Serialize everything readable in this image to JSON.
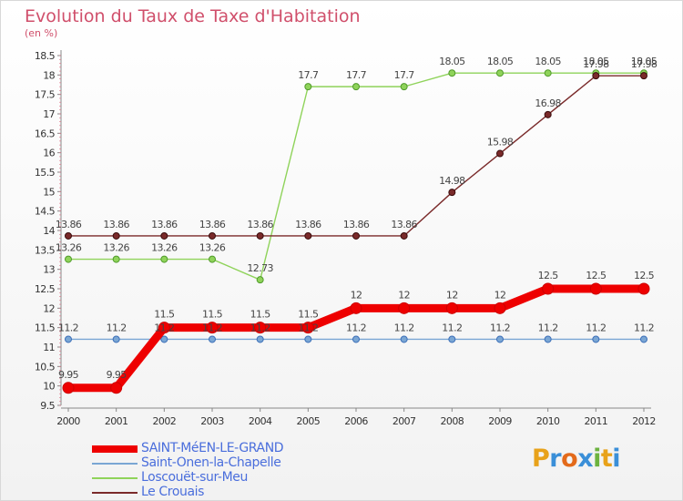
{
  "chart": {
    "title": "Evolution du Taux de Taxe d'Habitation",
    "unit": "(en %)"
  },
  "logo": {
    "text": "Proxiti",
    "letter_colors": [
      "#e8a21a",
      "#3a8fd8",
      "#e36a1b",
      "#3a8fd8",
      "#6cb33f",
      "#e8a21a",
      "#3a8fd8"
    ]
  },
  "chart_data": {
    "type": "line",
    "title": "Evolution du Taux de Taxe d'Habitation",
    "ylabel": "(en %)",
    "xlabel": "",
    "x": [
      "2000",
      "2001",
      "2002",
      "2003",
      "2004",
      "2005",
      "2006",
      "2007",
      "2008",
      "2009",
      "2010",
      "2011",
      "2012"
    ],
    "ylim": [
      9.5,
      18.5
    ],
    "yticks": [
      "9.5",
      "10",
      "10.5",
      "11",
      "11.5",
      "12",
      "12.5",
      "13",
      "13.5",
      "14",
      "14.5",
      "15",
      "15.5",
      "16",
      "16.5",
      "17",
      "17.5",
      "18",
      "18.5"
    ],
    "grid": false,
    "legend_position": "bottom-left",
    "series": [
      {
        "name": "SAINT-MéEN-LE-GRAND",
        "color": "#ee0000",
        "values": [
          9.95,
          9.95,
          11.5,
          11.5,
          11.5,
          11.5,
          12,
          12,
          12,
          12,
          12.5,
          12.5,
          12.5
        ],
        "labels": [
          "9.95",
          "9.95",
          "11.5",
          "11.5",
          "11.5",
          "11.5",
          "12",
          "12",
          "12",
          "12",
          "12.5",
          "12.5",
          "12.5"
        ]
      },
      {
        "name": "Saint-Onen-la-Chapelle",
        "color": "#7aa6d4",
        "values": [
          11.2,
          11.2,
          11.2,
          11.2,
          11.2,
          11.2,
          11.2,
          11.2,
          11.2,
          11.2,
          11.2,
          11.2,
          11.2
        ],
        "labels": [
          "11.2",
          "11.2",
          "11.2",
          "11.2",
          "11.2",
          "11.2",
          "11.2",
          "11.2",
          "11.2",
          "11.2",
          "11.2",
          "11.2",
          "11.2"
        ]
      },
      {
        "name": "Loscouët-sur-Meu",
        "color": "#8fd35a",
        "values": [
          13.26,
          13.26,
          13.26,
          13.26,
          12.73,
          17.7,
          17.7,
          17.7,
          18.05,
          18.05,
          18.05,
          18.05,
          18.05
        ],
        "labels": [
          "13.26",
          "13.26",
          "13.26",
          "13.26",
          "12.73",
          "17.7",
          "17.7",
          "17.7",
          "18.05",
          "18.05",
          "18.05",
          "18.05",
          "18.05"
        ]
      },
      {
        "name": "Le Crouais",
        "color": "#7a2a2a",
        "values": [
          13.86,
          13.86,
          13.86,
          13.86,
          13.86,
          13.86,
          13.86,
          13.86,
          14.98,
          15.98,
          16.98,
          17.98,
          17.98
        ],
        "labels": [
          "13.86",
          "13.86",
          "13.86",
          "13.86",
          "13.86",
          "13.86",
          "13.86",
          "13.86",
          "14.98",
          "15.98",
          "16.98",
          "17.98",
          "17.98"
        ]
      }
    ]
  }
}
